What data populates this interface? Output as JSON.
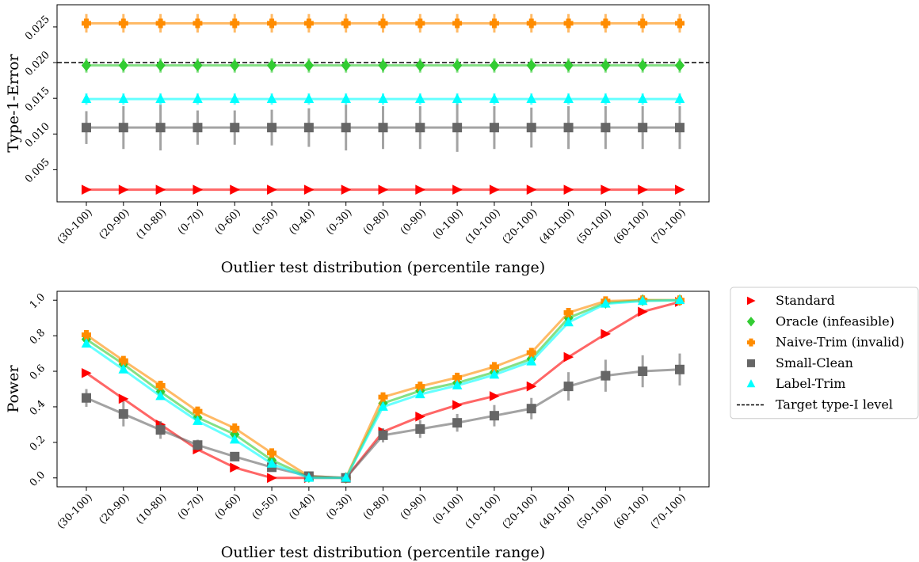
{
  "chart_data": [
    {
      "type": "line",
      "y_label": "Type-1-Error",
      "x_label": "Outlier test distribution (percentile range)",
      "categories": [
        "(30-100)",
        "(20-90)",
        "(10-80)",
        "(0-70)",
        "(0-60)",
        "(0-50)",
        "(0-40)",
        "(0-30)",
        "(0-80)",
        "(0-90)",
        "(0-100)",
        "(10-100)",
        "(20-100)",
        "(40-100)",
        "(50-100)",
        "(60-100)",
        "(70-100)"
      ],
      "ylim": [
        0.0005,
        0.0281
      ],
      "yticks": [
        0.005,
        {
          "value": 0.01,
          "label": "0.010"
        },
        0.015,
        {
          "value": 0.02,
          "label": "0.020"
        },
        0.025
      ],
      "reference_line": {
        "value": 0.02,
        "label": "Target type-I level",
        "color": "#000000"
      },
      "series": [
        {
          "name": "Standard",
          "color": "#ff0000",
          "marker": "triangle-right",
          "values": [
            0.0022,
            0.0022,
            0.0022,
            0.0022,
            0.0022,
            0.0022,
            0.0022,
            0.0022,
            0.0022,
            0.0022,
            0.0022,
            0.0022,
            0.0022,
            0.0022,
            0.0022,
            0.0022,
            0.0022
          ],
          "errors": [
            0.0002,
            0.0002,
            0.0002,
            0.0002,
            0.0002,
            0.0002,
            0.0002,
            0.0002,
            0.0002,
            0.0002,
            0.0002,
            0.0002,
            0.0002,
            0.0002,
            0.0002,
            0.0002,
            0.0002
          ]
        },
        {
          "name": "Oracle (infeasible)",
          "color": "#33cc33",
          "marker": "diamond",
          "values": [
            0.0196,
            0.0196,
            0.0196,
            0.0196,
            0.0196,
            0.0196,
            0.0196,
            0.0196,
            0.0196,
            0.0196,
            0.0196,
            0.0196,
            0.0196,
            0.0196,
            0.0196,
            0.0196,
            0.0196
          ],
          "errors": [
            0.001,
            0.001,
            0.001,
            0.001,
            0.001,
            0.001,
            0.001,
            0.001,
            0.001,
            0.001,
            0.001,
            0.001,
            0.001,
            0.001,
            0.001,
            0.001,
            0.001
          ]
        },
        {
          "name": "Naive-Trim (invalid)",
          "color": "#ff8c00",
          "marker": "plus",
          "values": [
            0.0255,
            0.0255,
            0.0255,
            0.0255,
            0.0255,
            0.0255,
            0.0255,
            0.0255,
            0.0255,
            0.0255,
            0.0255,
            0.0255,
            0.0255,
            0.0255,
            0.0255,
            0.0255,
            0.0255
          ],
          "errors": [
            0.0013,
            0.0013,
            0.0013,
            0.0013,
            0.0013,
            0.0013,
            0.0013,
            0.0013,
            0.0013,
            0.0013,
            0.0013,
            0.0013,
            0.0013,
            0.0013,
            0.0013,
            0.0013,
            0.0013
          ]
        },
        {
          "name": "Small-Clean",
          "color": "#666666",
          "marker": "square",
          "values": [
            0.0109,
            0.0109,
            0.0109,
            0.0109,
            0.0109,
            0.0109,
            0.0109,
            0.0109,
            0.0109,
            0.0109,
            0.0109,
            0.0109,
            0.0109,
            0.0109,
            0.0109,
            0.0109,
            0.0109
          ],
          "errors": [
            0.0023,
            0.003,
            0.0032,
            0.0024,
            0.0024,
            0.0025,
            0.0027,
            0.0032,
            0.003,
            0.003,
            0.0034,
            0.003,
            0.0028,
            0.003,
            0.003,
            0.003,
            0.003
          ]
        },
        {
          "name": "Label-Trim",
          "color": "#00ffff",
          "marker": "triangle-up",
          "values": [
            0.0149,
            0.0149,
            0.0149,
            0.0149,
            0.0149,
            0.0149,
            0.0149,
            0.0149,
            0.0149,
            0.0149,
            0.0149,
            0.0149,
            0.0149,
            0.0149,
            0.0149,
            0.0149,
            0.0149
          ],
          "errors": [
            0.0008,
            0.0008,
            0.0008,
            0.0008,
            0.0008,
            0.0008,
            0.0008,
            0.0008,
            0.0008,
            0.0008,
            0.0008,
            0.0008,
            0.0008,
            0.0008,
            0.0008,
            0.0008,
            0.0008
          ]
        }
      ]
    },
    {
      "type": "line",
      "y_label": "Power",
      "x_label": "Outlier test distribution (percentile range)",
      "categories": [
        "(30-100)",
        "(20-90)",
        "(10-80)",
        "(0-70)",
        "(0-60)",
        "(0-50)",
        "(0-40)",
        "(0-30)",
        "(0-80)",
        "(0-90)",
        "(0-100)",
        "(10-100)",
        "(20-100)",
        "(40-100)",
        "(50-100)",
        "(60-100)",
        "(70-100)"
      ],
      "ylim": [
        -0.05,
        1.05
      ],
      "yticks": [
        {
          "value": 0,
          "label": "0.0"
        },
        0.2,
        0.4,
        0.6,
        0.8,
        {
          "value": 1,
          "label": "1.0"
        }
      ],
      "legend": "outside right",
      "series": [
        {
          "name": "Standard",
          "color": "#ff0000",
          "marker": "triangle-right",
          "values": [
            0.59,
            0.445,
            0.3,
            0.16,
            0.058,
            0.0,
            0.0,
            0.0,
            0.26,
            0.345,
            0.41,
            0.46,
            0.515,
            0.68,
            0.81,
            0.935,
            0.99
          ],
          "errors": [
            0.01,
            0.01,
            0.01,
            0.01,
            0.005,
            0.002,
            0.002,
            0.002,
            0.01,
            0.01,
            0.01,
            0.01,
            0.01,
            0.01,
            0.01,
            0.01,
            0.005
          ]
        },
        {
          "name": "Oracle (infeasible)",
          "color": "#33cc33",
          "marker": "diamond",
          "values": [
            0.78,
            0.64,
            0.485,
            0.34,
            0.245,
            0.1,
            0.005,
            0.0,
            0.42,
            0.49,
            0.535,
            0.595,
            0.67,
            0.9,
            0.985,
            1.0,
            1.0
          ],
          "errors": [
            0.01,
            0.01,
            0.01,
            0.01,
            0.01,
            0.01,
            0.005,
            0.002,
            0.01,
            0.01,
            0.01,
            0.01,
            0.01,
            0.01,
            0.005,
            0.002,
            0.002
          ]
        },
        {
          "name": "Naive-Trim (invalid)",
          "color": "#ff8c00",
          "marker": "plus",
          "values": [
            0.805,
            0.66,
            0.52,
            0.375,
            0.28,
            0.14,
            0.01,
            0.0,
            0.455,
            0.515,
            0.565,
            0.625,
            0.705,
            0.93,
            0.995,
            1.0,
            1.0
          ],
          "errors": [
            0.01,
            0.01,
            0.01,
            0.01,
            0.01,
            0.01,
            0.005,
            0.002,
            0.01,
            0.01,
            0.01,
            0.01,
            0.01,
            0.01,
            0.005,
            0.002,
            0.002
          ]
        },
        {
          "name": "Small-Clean",
          "color": "#666666",
          "marker": "square",
          "values": [
            0.45,
            0.36,
            0.27,
            0.185,
            0.12,
            0.06,
            0.01,
            0.0,
            0.24,
            0.275,
            0.31,
            0.35,
            0.39,
            0.515,
            0.575,
            0.6,
            0.61
          ],
          "errors": [
            0.05,
            0.07,
            0.05,
            0.03,
            0.02,
            0.02,
            0.01,
            0.005,
            0.04,
            0.05,
            0.05,
            0.06,
            0.06,
            0.08,
            0.09,
            0.09,
            0.09
          ]
        },
        {
          "name": "Label-Trim",
          "color": "#00ffff",
          "marker": "triangle-up",
          "values": [
            0.755,
            0.61,
            0.46,
            0.32,
            0.215,
            0.08,
            0.0,
            0.0,
            0.4,
            0.47,
            0.52,
            0.58,
            0.655,
            0.875,
            0.98,
            0.995,
            1.0
          ],
          "errors": [
            0.01,
            0.01,
            0.01,
            0.01,
            0.01,
            0.01,
            0.002,
            0.002,
            0.01,
            0.01,
            0.01,
            0.01,
            0.01,
            0.01,
            0.005,
            0.002,
            0.002
          ]
        }
      ]
    }
  ]
}
